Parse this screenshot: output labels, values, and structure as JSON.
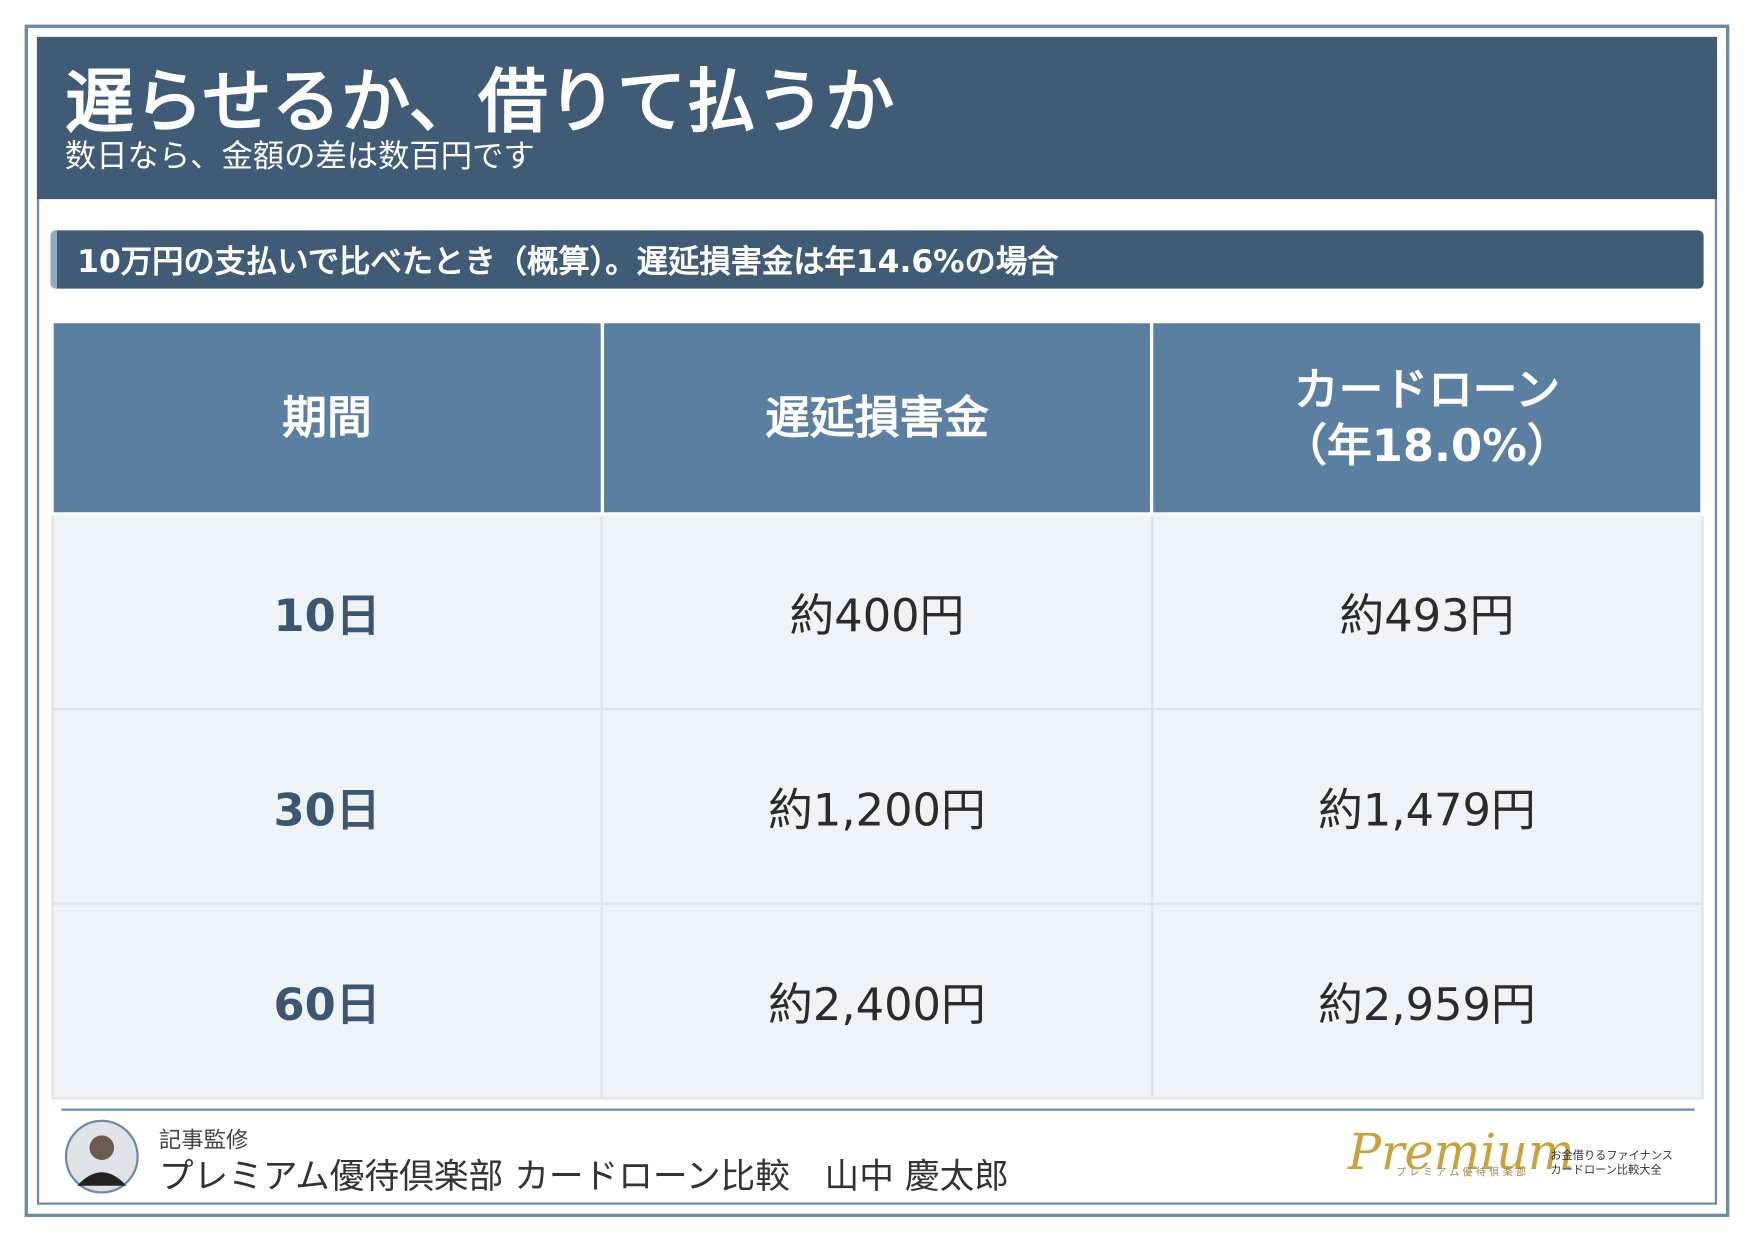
{
  "header": {
    "title": "遅らせるか、借りて払うか",
    "subtitle": "数日なら、金額の差は数百円です"
  },
  "subheading": "10万円の支払いで比べたとき（概算）。遅延損害金は年14.6%の場合",
  "table": {
    "columns": [
      "期間",
      "遅延損害金",
      "カードローン\n（年18.0%）"
    ],
    "rows": [
      [
        "10日",
        "約400円",
        "約493円"
      ],
      [
        "30日",
        "約1,200円",
        "約1,479円"
      ],
      [
        "60日",
        "約2,400円",
        "約2,959円"
      ]
    ]
  },
  "footer": {
    "label": "記事監修",
    "name": "プレミアム優待倶楽部 カードローン比較　山中 慶太郎"
  },
  "logo": {
    "wordmark": "Premium",
    "kana": "プレミアム優待倶楽部",
    "tagline": [
      "お金借りるファイナンス",
      "カードローン比較大全"
    ]
  }
}
